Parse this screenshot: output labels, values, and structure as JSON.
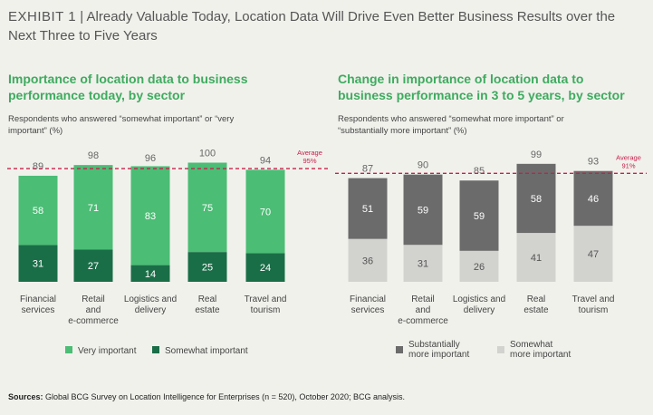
{
  "header": {
    "exhibit": "EXHIBIT 1",
    "title": "Already Valuable Today, Location Data Will Drive Even Better Business Results over the Next Three to Five Years"
  },
  "chart_data": [
    {
      "type": "bar",
      "stacked": true,
      "title": "Importance of location data to business performance today, by sector",
      "subtitle": "Respondents who answered “somewhat important” or “very important” (%)",
      "categories": [
        [
          "Financial",
          "services"
        ],
        [
          "Retail",
          "and",
          "e-commerce"
        ],
        [
          "Logistics and",
          "delivery"
        ],
        [
          "Real",
          "estate"
        ],
        [
          "Travel and",
          "tourism"
        ]
      ],
      "series": [
        {
          "name": "Somewhat important",
          "color": "#1a6e47",
          "labelColor": "#ffffff",
          "values": [
            31,
            27,
            14,
            25,
            24
          ]
        },
        {
          "name": "Very important",
          "color": "#4bbd75",
          "labelColor": "#ffffff",
          "values": [
            58,
            71,
            83,
            75,
            70
          ]
        }
      ],
      "totals": [
        89,
        98,
        96,
        100,
        94
      ],
      "average": {
        "value": 95,
        "label": "Average",
        "label_value": "95%",
        "color": "#c8204a"
      },
      "legend": [
        {
          "name": "Very important",
          "color": "#4bbd75"
        },
        {
          "name": "Somewhat important",
          "color": "#1a6e47"
        }
      ],
      "ylim": [
        0,
        100
      ]
    },
    {
      "type": "bar",
      "stacked": true,
      "title": "Change in importance of location data to business performance in 3 to 5 years, by sector",
      "subtitle": "Respondents who answered “somewhat more important” or “substantially more important” (%)",
      "categories": [
        [
          "Financial",
          "services"
        ],
        [
          "Retail",
          "and",
          "e-commerce"
        ],
        [
          "Logistics and",
          "delivery"
        ],
        [
          "Real",
          "estate"
        ],
        [
          "Travel and",
          "tourism"
        ]
      ],
      "series": [
        {
          "name": "Somewhat more important",
          "color": "#d2d2cf",
          "labelColor": "#555555",
          "values": [
            36,
            31,
            26,
            41,
            47
          ]
        },
        {
          "name": "Substantially more important",
          "color": "#6b6b6b",
          "labelColor": "#ffffff",
          "values": [
            51,
            59,
            59,
            58,
            46
          ]
        }
      ],
      "totals": [
        87,
        90,
        85,
        99,
        93
      ],
      "average": {
        "value": 91,
        "label": "Average",
        "label_value": "91%",
        "color": "#c8204a"
      },
      "legend": [
        {
          "name": [
            "Substantially",
            "more important"
          ],
          "color": "#6b6b6b"
        },
        {
          "name": [
            "Somewhat",
            "more important"
          ],
          "color": "#d2d2cf"
        }
      ],
      "ylim": [
        0,
        100
      ]
    }
  ],
  "source": {
    "label": "Sources:",
    "text": " Global BCG Survey on Location Intelligence for Enterprises (n = 520), October 2020; BCG analysis."
  }
}
